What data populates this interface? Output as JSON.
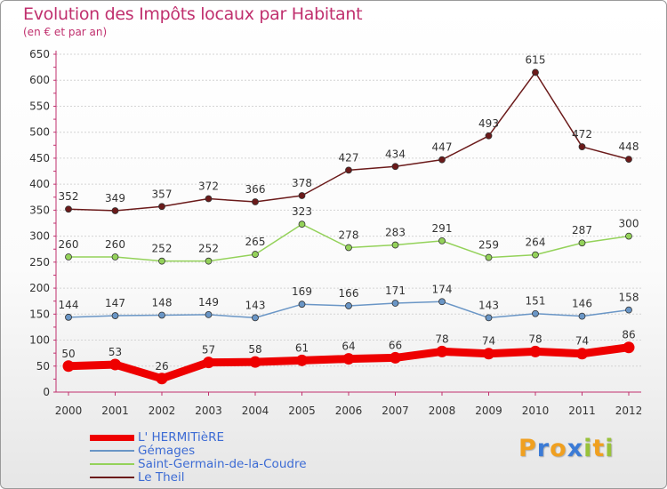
{
  "header": {
    "title": "Evolution des Impôts locaux par Habitant",
    "subtitle": "(en € et par an)"
  },
  "logo": {
    "letters": [
      "P",
      "r",
      "o",
      "x",
      "i",
      "t",
      "i"
    ],
    "colors": [
      "#f0a020",
      "#3b7bd6",
      "#f0a020",
      "#3b7bd6",
      "#99c23a",
      "#f0a020",
      "#99c23a"
    ]
  },
  "colors": {
    "title": "#c0306e",
    "axis": "#c0306e",
    "legend_text": "#3c6bd4"
  },
  "chart_data": {
    "type": "line",
    "categories": [
      "2000",
      "2001",
      "2002",
      "2003",
      "2004",
      "2005",
      "2006",
      "2007",
      "2008",
      "2009",
      "2010",
      "2011",
      "2012"
    ],
    "ylim": [
      0,
      650
    ],
    "yticks": [
      0,
      50,
      100,
      150,
      200,
      250,
      300,
      350,
      400,
      450,
      500,
      550,
      600,
      650
    ],
    "grid": true,
    "legend_position": "bottom-left",
    "series": [
      {
        "name": "L' HERMITièRE",
        "color": "#ee0000",
        "values": [
          50,
          53,
          26,
          57,
          58,
          61,
          64,
          66,
          78,
          74,
          78,
          74,
          86
        ]
      },
      {
        "name": "Gémages",
        "color": "#6a96c6",
        "values": [
          144,
          147,
          148,
          149,
          143,
          169,
          166,
          171,
          174,
          143,
          151,
          146,
          158
        ]
      },
      {
        "name": "Saint-Germain-de-la-Coudre",
        "color": "#94d25a",
        "values": [
          260,
          260,
          252,
          252,
          265,
          323,
          278,
          283,
          291,
          259,
          264,
          287,
          300
        ]
      },
      {
        "name": "Le Theil",
        "color": "#6b1a1a",
        "values": [
          352,
          349,
          357,
          372,
          366,
          378,
          427,
          434,
          447,
          493,
          615,
          472,
          448
        ]
      }
    ]
  }
}
